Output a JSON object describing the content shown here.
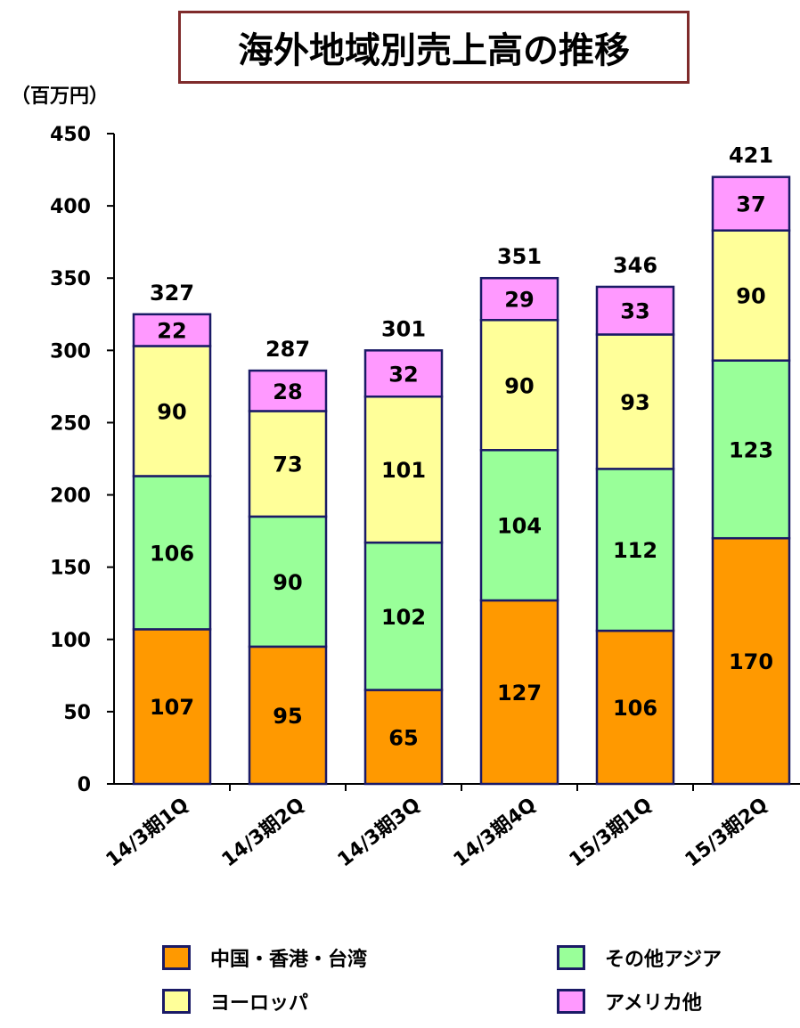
{
  "chart_data": {
    "type": "bar",
    "stacked": true,
    "title": "海外地域別売上高の推移",
    "unit_label": "（百万円）",
    "categories": [
      "14/3期1Q",
      "14/3期2Q",
      "14/3期3Q",
      "14/3期4Q",
      "15/3期1Q",
      "15/3期2Q"
    ],
    "series": [
      {
        "name": "中国・香港・台湾",
        "color": "#ff9900",
        "values": [
          107,
          95,
          65,
          127,
          106,
          170
        ]
      },
      {
        "name": "その他アジア",
        "color": "#99ff99",
        "values": [
          106,
          90,
          102,
          104,
          112,
          123
        ]
      },
      {
        "name": "ヨーロッパ",
        "color": "#ffff99",
        "values": [
          90,
          73,
          101,
          90,
          93,
          90
        ]
      },
      {
        "name": "アメリカ他",
        "color": "#ff99ff",
        "values": [
          22,
          28,
          32,
          29,
          33,
          37
        ]
      }
    ],
    "totals": [
      327,
      287,
      301,
      351,
      346,
      421
    ],
    "ylim": [
      0,
      450
    ],
    "yticks": [
      "0",
      "50",
      "100",
      "150",
      "200",
      "250",
      "300",
      "350",
      "400",
      "450"
    ],
    "grid": false,
    "legend_position": "bottom"
  },
  "legend": [
    {
      "label": "中国・香港・台湾",
      "color": "#ff9900"
    },
    {
      "label": "その他アジア",
      "color": "#99ff99"
    },
    {
      "label": "ヨーロッパ",
      "color": "#ffff99"
    },
    {
      "label": "アメリカ他",
      "color": "#ff99ff"
    }
  ]
}
